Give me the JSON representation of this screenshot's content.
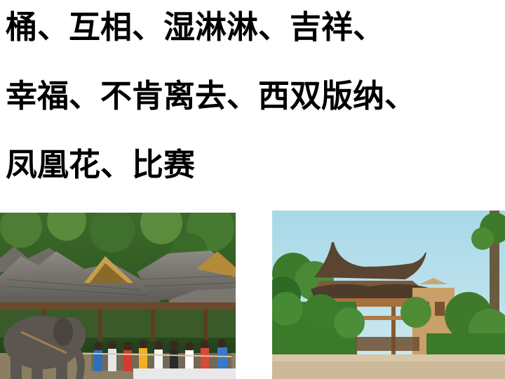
{
  "lines": [
    "桶、互相、湿淋淋、吉祥、",
    "幸福、不肯离去、西双版纳、",
    "凤凰花、比赛"
  ]
}
